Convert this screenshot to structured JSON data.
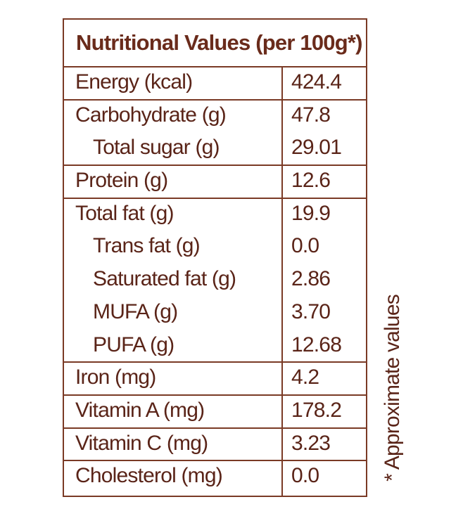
{
  "title": "Nutritional Values (per 100g*)",
  "groups": [
    {
      "rows": [
        {
          "name": "Energy (kcal)",
          "value": "424.4",
          "sub": false
        }
      ]
    },
    {
      "rows": [
        {
          "name": "Carbohydrate (g)",
          "value": "47.8",
          "sub": false
        },
        {
          "name": "Total sugar (g)",
          "value": "29.01",
          "sub": true
        }
      ]
    },
    {
      "rows": [
        {
          "name": "Protein (g)",
          "value": "12.6",
          "sub": false
        }
      ]
    },
    {
      "rows": [
        {
          "name": "Total fat (g)",
          "value": "19.9",
          "sub": false
        },
        {
          "name": "Trans fat (g)",
          "value": "0.0",
          "sub": true
        },
        {
          "name": "Saturated fat (g)",
          "value": "2.86",
          "sub": true
        },
        {
          "name": "MUFA (g)",
          "value": "3.70",
          "sub": true
        },
        {
          "name": "PUFA (g)",
          "value": "12.68",
          "sub": true
        }
      ]
    },
    {
      "rows": [
        {
          "name": "Iron (mg)",
          "value": "4.2",
          "sub": false
        }
      ]
    },
    {
      "rows": [
        {
          "name": "Vitamin A (mg)",
          "value": "178.2",
          "sub": false
        }
      ]
    },
    {
      "rows": [
        {
          "name": "Vitamin C (mg)",
          "value": "3.23",
          "sub": false
        }
      ]
    },
    {
      "rows": [
        {
          "name": "Cholesterol (mg)",
          "value": "0.0",
          "sub": false
        }
      ]
    }
  ],
  "footnote": "* Approximate values",
  "colors": {
    "ink": "#5a2418",
    "rule": "#7a3a25"
  }
}
